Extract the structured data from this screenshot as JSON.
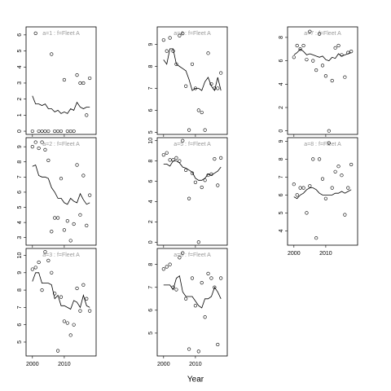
{
  "xlabel": "Year",
  "chart_data": [
    {
      "type": "scatter",
      "title": "a=1 : f=Fleet A",
      "x": [
        2000,
        2001,
        2002,
        2003,
        2004,
        2005,
        2006,
        2007,
        2008,
        2009,
        2010,
        2011,
        2012,
        2013,
        2014,
        2015,
        2016,
        2017,
        2018
      ],
      "values": [
        0,
        6.1,
        0,
        0,
        0,
        0,
        4.8,
        0,
        0,
        0,
        3.2,
        0,
        0,
        0,
        3.5,
        3.0,
        3.0,
        1.0,
        3.3
      ],
      "line_values": [
        2.2,
        1.7,
        1.7,
        1.6,
        1.7,
        1.4,
        1.4,
        1.2,
        1.3,
        1.1,
        1.2,
        1.1,
        1.4,
        1.3,
        1.8,
        1.5,
        1.4,
        1.5,
        1.5
      ],
      "xlim": [
        1998,
        2020
      ],
      "xticks": [
        2000,
        2010
      ],
      "ylim": [
        -0.2,
        6.5
      ],
      "yticks": [
        0,
        1,
        2,
        3,
        4,
        5,
        6
      ],
      "show_xticklabels": false
    },
    {
      "type": "scatter",
      "title": "a=2 : f=Fleet A",
      "x": [
        2000,
        2001,
        2002,
        2003,
        2004,
        2005,
        2006,
        2007,
        2008,
        2009,
        2010,
        2011,
        2012,
        2013,
        2014,
        2015,
        2016,
        2017,
        2018
      ],
      "values": [
        9.0,
        9.3,
        8.9,
        9.3,
        8.8,
        8.1,
        3.4,
        4.3,
        4.3,
        6.9,
        3.5,
        4.1,
        2.8,
        3.9,
        7.8,
        4.5,
        7.1,
        3.8,
        5.8
      ],
      "line_values": [
        7.7,
        7.8,
        7.1,
        7.0,
        7.0,
        6.9,
        6.3,
        6.0,
        5.6,
        5.6,
        5.3,
        5.2,
        5.6,
        5.4,
        5.3,
        5.9,
        5.5,
        5.2,
        5.3
      ],
      "xlim": [
        1998,
        2020
      ],
      "xticks": [
        2000,
        2010
      ],
      "ylim": [
        2.5,
        9.6
      ],
      "yticks": [
        3,
        4,
        5,
        6,
        7,
        8,
        9
      ],
      "show_xticklabels": false
    },
    {
      "type": "scatter",
      "title": "a=3 : f=Fleet A",
      "x": [
        2000,
        2001,
        2002,
        2003,
        2004,
        2005,
        2006,
        2007,
        2008,
        2009,
        2010,
        2011,
        2012,
        2013,
        2014,
        2015,
        2016,
        2017,
        2018
      ],
      "values": [
        9.2,
        9.3,
        9.6,
        8.0,
        10.2,
        9.7,
        9.0,
        7.8,
        4.5,
        7.6,
        6.2,
        6.1,
        5.4,
        6.0,
        8.1,
        6.8,
        8.3,
        7.5,
        6.8
      ],
      "line_values": [
        8.5,
        9.0,
        9.0,
        8.4,
        8.4,
        8.4,
        8.3,
        7.5,
        7.7,
        7.1,
        7.1,
        7.0,
        6.9,
        7.4,
        7.3,
        7.0,
        7.7,
        7.1,
        7.0
      ],
      "xlim": [
        1998,
        2020
      ],
      "xticks": [
        2000,
        2010
      ],
      "ylim": [
        4.2,
        10.4
      ],
      "yticks": [
        5,
        6,
        7,
        8,
        9,
        10
      ],
      "show_xticklabels": true
    },
    {
      "type": "scatter",
      "title": "a=4 : f=Fleet A",
      "x": [
        2000,
        2001,
        2002,
        2003,
        2004,
        2005,
        2006,
        2007,
        2008,
        2009,
        2010,
        2011,
        2012,
        2013,
        2014,
        2015,
        2016,
        2017,
        2018
      ],
      "values": [
        9.2,
        8.7,
        9.3,
        8.7,
        8.1,
        9.4,
        9.5,
        7.1,
        5.1,
        8.1,
        7.0,
        6.0,
        5.9,
        5.1,
        8.6,
        7.2,
        7.0,
        7.0,
        7.7
      ],
      "line_values": [
        8.3,
        8.1,
        8.8,
        8.8,
        8.1,
        8.0,
        7.9,
        7.8,
        7.4,
        6.9,
        7.0,
        7.0,
        6.9,
        7.3,
        7.5,
        7.1,
        6.9,
        7.5,
        6.9
      ],
      "xlim": [
        1998,
        2020
      ],
      "xticks": [
        2000,
        2010
      ],
      "ylim": [
        4.9,
        9.8
      ],
      "yticks": [
        5,
        6,
        7,
        8,
        9
      ],
      "show_xticklabels": false
    },
    {
      "type": "scatter",
      "title": "a=5 : f=Fleet A",
      "x": [
        2000,
        2001,
        2002,
        2003,
        2004,
        2005,
        2006,
        2007,
        2008,
        2009,
        2010,
        2011,
        2012,
        2013,
        2014,
        2015,
        2016,
        2017,
        2018
      ],
      "values": [
        8.6,
        8.8,
        8.1,
        8.1,
        8.3,
        8.0,
        10.0,
        7.1,
        4.3,
        6.8,
        5.9,
        0,
        5.4,
        6.1,
        6.6,
        6.7,
        8.2,
        5.6,
        8.3
      ],
      "line_values": [
        7.7,
        7.7,
        7.5,
        8.0,
        8.0,
        7.8,
        7.4,
        7.3,
        7.1,
        6.9,
        6.3,
        6.1,
        6.1,
        6.3,
        6.7,
        6.6,
        6.8,
        7.0,
        7.4
      ],
      "xlim": [
        1998,
        2020
      ],
      "xticks": [
        2000,
        2010
      ],
      "ylim": [
        -0.3,
        10.3
      ],
      "yticks": [
        0,
        2,
        4,
        6,
        8,
        10
      ],
      "show_xticklabels": false
    },
    {
      "type": "scatter",
      "title": "a=6 : f=Fleet A",
      "x": [
        2000,
        2001,
        2002,
        2003,
        2004,
        2005,
        2006,
        2007,
        2008,
        2009,
        2010,
        2011,
        2012,
        2013,
        2014,
        2015,
        2016,
        2017,
        2018
      ],
      "values": [
        7.8,
        7.9,
        8.0,
        7.0,
        6.9,
        8.3,
        8.5,
        6.5,
        4.3,
        7.4,
        6.2,
        4.2,
        7.2,
        5.7,
        7.6,
        7.4,
        7.0,
        4.5,
        7.4
      ],
      "line_values": [
        7.1,
        7.1,
        7.1,
        6.9,
        7.4,
        7.5,
        6.8,
        6.6,
        6.6,
        6.6,
        6.4,
        6.2,
        6.1,
        6.5,
        6.5,
        6.6,
        7.0,
        6.8,
        6.5
      ],
      "xlim": [
        1998,
        2020
      ],
      "xticks": [
        2000,
        2010
      ],
      "ylim": [
        4.0,
        8.7
      ],
      "yticks": [
        5,
        6,
        7,
        8
      ],
      "show_xticklabels": true
    },
    {
      "type": "scatter",
      "title": "a=7 : f=Fleet A",
      "x": [
        2000,
        2001,
        2002,
        2003,
        2004,
        2005,
        2006,
        2007,
        2008,
        2009,
        2010,
        2011,
        2012,
        2013,
        2014,
        2015,
        2016,
        2017,
        2018
      ],
      "values": [
        6.3,
        7.3,
        7.0,
        7.3,
        6.1,
        8.5,
        6.0,
        5.2,
        8.3,
        5.6,
        4.7,
        0,
        4.3,
        7.1,
        7.3,
        6.5,
        4.6,
        6.7,
        6.8
      ],
      "line_values": [
        6.5,
        6.7,
        7.0,
        6.8,
        6.5,
        6.6,
        6.5,
        6.4,
        6.3,
        6.4,
        6.1,
        6.0,
        6.3,
        6.2,
        6.6,
        6.4,
        6.5,
        6.6,
        6.7
      ],
      "xlim": [
        1998,
        2020
      ],
      "xticks": [
        2000,
        2010
      ],
      "ylim": [
        -0.3,
        8.9
      ],
      "yticks": [
        0,
        2,
        4,
        6,
        8
      ],
      "show_xticklabels": false
    },
    {
      "type": "scatter",
      "title": "a=8 : f=Fleet A",
      "x": [
        2000,
        2001,
        2002,
        2003,
        2004,
        2005,
        2006,
        2007,
        2008,
        2009,
        2010,
        2011,
        2012,
        2013,
        2014,
        2015,
        2016,
        2017,
        2018
      ],
      "values": [
        6.6,
        6.0,
        6.4,
        6.4,
        5.0,
        6.5,
        8.0,
        3.6,
        8.0,
        6.9,
        5.8,
        8.9,
        6.4,
        7.3,
        7.6,
        7.1,
        4.9,
        6.4,
        7.7
      ],
      "line_values": [
        5.9,
        5.8,
        6.0,
        6.1,
        6.3,
        6.4,
        6.4,
        6.3,
        6.1,
        6.0,
        6.0,
        6.0,
        6.0,
        6.1,
        6.1,
        6.2,
        6.1,
        6.2,
        6.3
      ],
      "xlim": [
        1998,
        2020
      ],
      "xticks": [
        2000,
        2010
      ],
      "ylim": [
        3.2,
        9.2
      ],
      "yticks": [
        4,
        5,
        6,
        7,
        8,
        9
      ],
      "show_xticklabels": true
    }
  ]
}
